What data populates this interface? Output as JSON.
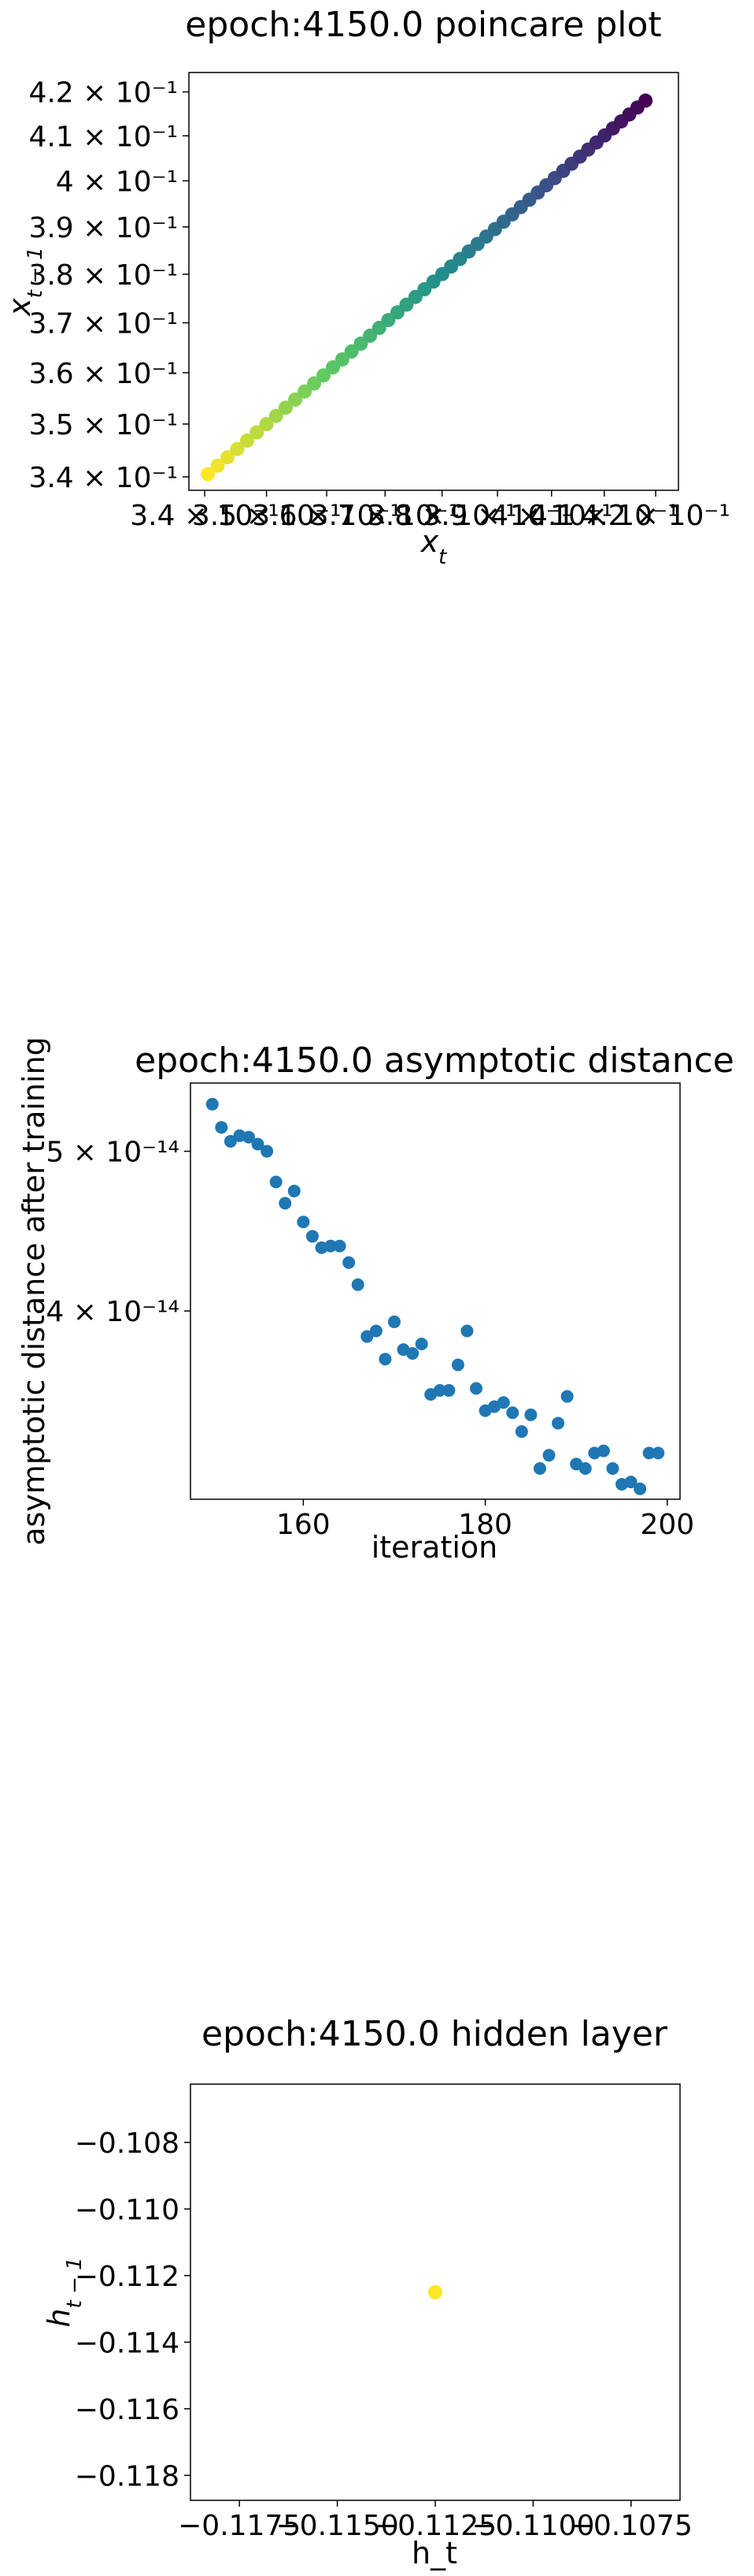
{
  "chart_data": [
    {
      "type": "scatter",
      "title": "epoch:4150.0 poincare plot",
      "xlabel": "x_t",
      "ylabel": "x_{t-1}",
      "xscale": "log",
      "yscale": "log",
      "xlim": [
        0.3375,
        0.4245
      ],
      "ylim": [
        0.3375,
        0.4245
      ],
      "xticks": [
        {
          "v": 0.34,
          "label": "3.4 × 10⁻¹"
        },
        {
          "v": 0.35,
          "label": "3.5 × 10⁻¹"
        },
        {
          "v": 0.36,
          "label": "3.6 × 10⁻¹"
        },
        {
          "v": 0.37,
          "label": "3.7 × 10⁻¹"
        },
        {
          "v": 0.38,
          "label": "3.8 × 10⁻¹"
        },
        {
          "v": 0.39,
          "label": "3.9 × 10⁻¹"
        },
        {
          "v": 0.4,
          "label": "4 × 10⁻¹"
        },
        {
          "v": 0.41,
          "label": "4.1 × 10⁻¹"
        },
        {
          "v": 0.42,
          "label": "4.2 × 10⁻¹"
        }
      ],
      "yticks": [
        {
          "v": 0.34,
          "label": "3.4 × 10⁻¹"
        },
        {
          "v": 0.35,
          "label": "3.5 × 10⁻¹"
        },
        {
          "v": 0.36,
          "label": "3.6 × 10⁻¹"
        },
        {
          "v": 0.37,
          "label": "3.7 × 10⁻¹"
        },
        {
          "v": 0.38,
          "label": "3.8 × 10⁻¹"
        },
        {
          "v": 0.39,
          "label": "3.9 × 10⁻¹"
        },
        {
          "v": 0.4,
          "label": "4 × 10⁻¹"
        },
        {
          "v": 0.41,
          "label": "4.1 × 10⁻¹"
        },
        {
          "v": 0.42,
          "label": "4.2 × 10⁻¹"
        }
      ],
      "series": [
        {
          "colormap": "viridis",
          "point_count": 50,
          "x_range": [
            0.3405,
            0.418
          ],
          "x_equals_y": true
        }
      ],
      "grid": false,
      "legend": "none"
    },
    {
      "type": "scatter",
      "title": "epoch:4150.0 asymptotic distance",
      "xlabel": "iteration",
      "ylabel": "asymptotic distance after training",
      "yscale": "log",
      "xlim": [
        147.6,
        201.4
      ],
      "ylim": [
        3.075e-14,
        5.5e-14
      ],
      "xticks": [
        {
          "v": 160,
          "label": "160"
        },
        {
          "v": 180,
          "label": "180"
        },
        {
          "v": 200,
          "label": "200"
        }
      ],
      "yticks": [
        {
          "v": 4e-14,
          "label": "4 × 10⁻¹⁴"
        },
        {
          "v": 5e-14,
          "label": "5 × 10⁻¹⁴"
        }
      ],
      "color": "#1f77b4",
      "series": [
        {
          "x": [
            150,
            151,
            152,
            153,
            154,
            155,
            156,
            157,
            158,
            159,
            160,
            161,
            162,
            163,
            164,
            165,
            166,
            167,
            168,
            169,
            170,
            171,
            172,
            173,
            174,
            175,
            176,
            177,
            178,
            179,
            180,
            181,
            182,
            183,
            184,
            185,
            186,
            187,
            188,
            189,
            190,
            191,
            192,
            193,
            194,
            195,
            196,
            197,
            198,
            199
          ],
          "y": [
            5.34e-14,
            5.17e-14,
            5.07e-14,
            5.11e-14,
            5.1e-14,
            5.05e-14,
            5e-14,
            4.79e-14,
            4.65e-14,
            4.73e-14,
            4.53e-14,
            4.44e-14,
            4.37e-14,
            4.38e-14,
            4.38e-14,
            4.28e-14,
            4.15e-14,
            3.86e-14,
            3.89e-14,
            3.74e-14,
            3.94e-14,
            3.79e-14,
            3.77e-14,
            3.82e-14,
            3.56e-14,
            3.58e-14,
            3.58e-14,
            3.71e-14,
            3.89e-14,
            3.59e-14,
            3.48e-14,
            3.5e-14,
            3.52e-14,
            3.47e-14,
            3.38e-14,
            3.46e-14,
            3.21e-14,
            3.27e-14,
            3.42e-14,
            3.55e-14,
            3.23e-14,
            3.21e-14,
            3.28e-14,
            3.29e-14,
            3.21e-14,
            3.14e-14,
            3.15e-14,
            3.12e-14,
            3.28e-14,
            3.28e-14
          ]
        }
      ],
      "grid": false,
      "legend": "none"
    },
    {
      "type": "scatter",
      "title": "epoch:4150.0 hidden layer",
      "xlabel": "h_t",
      "ylabel": "h_{t-1}",
      "xlim": [
        -0.11875,
        -0.10625
      ],
      "ylim": [
        -0.11875,
        -0.10625
      ],
      "xticks": [
        {
          "v": -0.1175,
          "label": "−0.1175"
        },
        {
          "v": -0.115,
          "label": "−0.1150"
        },
        {
          "v": -0.1125,
          "label": "−0.1125"
        },
        {
          "v": -0.11,
          "label": "−0.1100"
        },
        {
          "v": -0.1075,
          "label": "−0.1075"
        }
      ],
      "yticks": [
        {
          "v": -0.108,
          "label": "−0.108"
        },
        {
          "v": -0.11,
          "label": "−0.110"
        },
        {
          "v": -0.112,
          "label": "−0.112"
        },
        {
          "v": -0.114,
          "label": "−0.114"
        },
        {
          "v": -0.116,
          "label": "−0.116"
        },
        {
          "v": -0.118,
          "label": "−0.118"
        }
      ],
      "color": "#fde725",
      "series": [
        {
          "x": [
            -0.1125
          ],
          "y": [
            -0.1125
          ]
        }
      ],
      "grid": false,
      "legend": "none"
    }
  ]
}
